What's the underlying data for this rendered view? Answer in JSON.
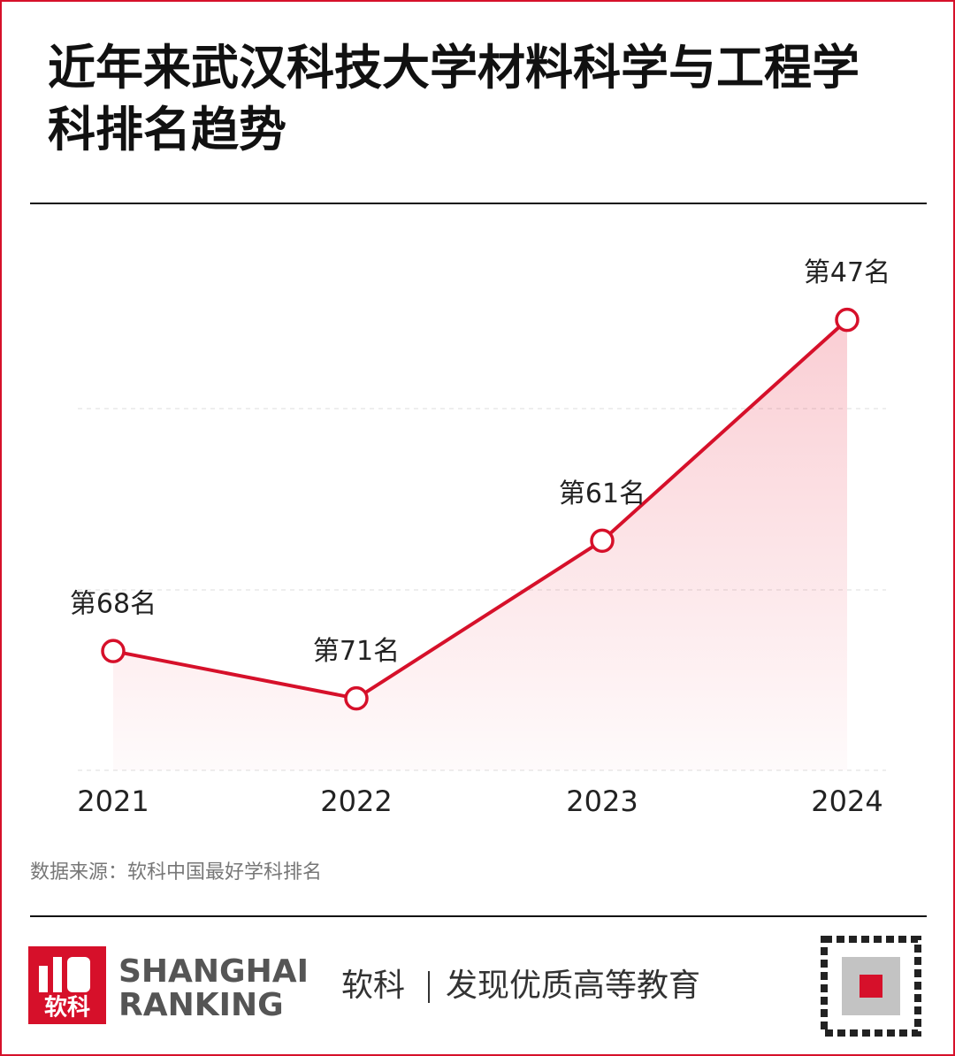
{
  "chart_data": {
    "type": "line",
    "title": "近年来武汉科技大学材料科学与工程学科排名趋势",
    "categories": [
      "2021",
      "2022",
      "2023",
      "2024"
    ],
    "values": [
      68,
      71,
      61,
      47
    ],
    "value_labels": [
      "第68名",
      "第71名",
      "第61名",
      "第47名"
    ],
    "color": "#d6102a",
    "ylim": [
      75,
      45
    ],
    "source": "数据来源：软科中国最好学科排名"
  },
  "footer": {
    "logo_text": "软科",
    "brand_line1": "SHANGHAI",
    "brand_line2": "RANKING",
    "slogan_brand": "软科",
    "slogan": "发现优质高等教育"
  }
}
